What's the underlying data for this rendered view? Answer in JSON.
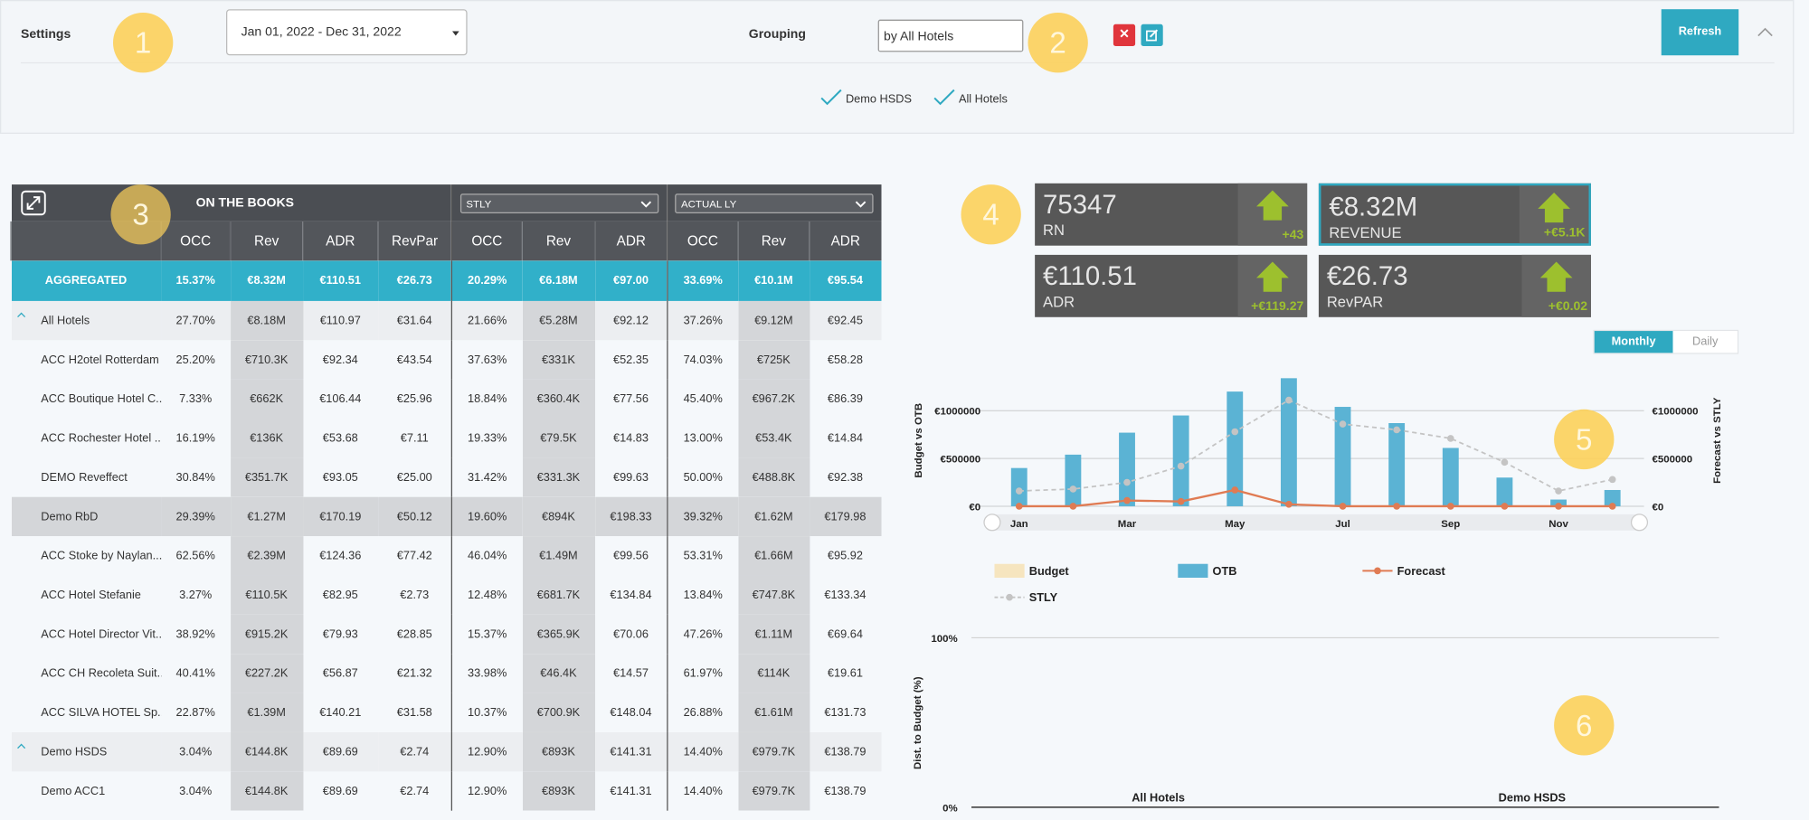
{
  "settings": {
    "title": "Settings",
    "date_range": "Jan 01, 2022 - Dec 31, 2022",
    "grouping_label": "Grouping",
    "grouping_value": "by All Hotels",
    "refresh": "Refresh",
    "selected": [
      "Demo HSDS",
      "All Hotels"
    ]
  },
  "annotations": [
    "1",
    "2",
    "3",
    "4",
    "5",
    "6"
  ],
  "table": {
    "group_headers": [
      "ON THE BOOKS",
      "STLY",
      "ACTUAL LY"
    ],
    "columns": [
      "OCC",
      "Rev",
      "ADR",
      "RevPar",
      "OCC",
      "Rev",
      "ADR",
      "OCC",
      "Rev",
      "ADR"
    ],
    "aggregate": {
      "label": "AGGREGATED",
      "cells": [
        "15.37%",
        "€8.32M",
        "€110.51",
        "€26.73",
        "20.29%",
        "€6.18M",
        "€97.00",
        "33.69%",
        "€10.1M",
        "€95.54"
      ]
    },
    "rows": [
      {
        "name": "All Hotels",
        "expanded": true,
        "cells": [
          "27.70%",
          "€8.18M",
          "€110.97",
          "€31.64",
          "21.66%",
          "€5.28M",
          "€92.12",
          "37.26%",
          "€9.12M",
          "€92.45"
        ]
      },
      {
        "name": "ACC H2otel Rotterdam",
        "cells": [
          "25.20%",
          "€710.3K",
          "€92.34",
          "€43.54",
          "37.63%",
          "€331K",
          "€52.35",
          "74.03%",
          "€725K",
          "€58.28"
        ]
      },
      {
        "name": "ACC Boutique Hotel C...",
        "cells": [
          "7.33%",
          "€662K",
          "€106.44",
          "€25.96",
          "18.84%",
          "€360.4K",
          "€77.56",
          "45.40%",
          "€967.2K",
          "€86.39"
        ]
      },
      {
        "name": "ACC Rochester Hotel ...",
        "cells": [
          "16.19%",
          "€136K",
          "€53.68",
          "€7.11",
          "19.33%",
          "€79.5K",
          "€14.83",
          "13.00%",
          "€53.4K",
          "€14.84"
        ]
      },
      {
        "name": "DEMO Reveffect",
        "cells": [
          "30.84%",
          "€351.7K",
          "€93.05",
          "€25.00",
          "31.42%",
          "€331.3K",
          "€99.63",
          "50.00%",
          "€488.8K",
          "€92.38"
        ]
      },
      {
        "name": "Demo RbD",
        "selected": true,
        "cells": [
          "29.39%",
          "€1.27M",
          "€170.19",
          "€50.12",
          "19.60%",
          "€894K",
          "€198.33",
          "39.32%",
          "€1.62M",
          "€179.98"
        ]
      },
      {
        "name": "ACC Stoke by Naylan...",
        "cells": [
          "62.56%",
          "€2.39M",
          "€124.36",
          "€77.42",
          "46.04%",
          "€1.49M",
          "€99.56",
          "53.31%",
          "€1.66M",
          "€95.92"
        ]
      },
      {
        "name": "ACC Hotel Stefanie",
        "cells": [
          "3.27%",
          "€110.5K",
          "€82.95",
          "€2.73",
          "12.48%",
          "€681.7K",
          "€134.84",
          "13.84%",
          "€747.8K",
          "€133.34"
        ]
      },
      {
        "name": "ACC Hotel Director Vit...",
        "cells": [
          "38.92%",
          "€915.2K",
          "€79.93",
          "€28.85",
          "15.37%",
          "€365.9K",
          "€70.06",
          "47.26%",
          "€1.11M",
          "€69.64"
        ]
      },
      {
        "name": "ACC CH Recoleta Suit...",
        "cells": [
          "40.41%",
          "€227.2K",
          "€56.87",
          "€21.32",
          "33.98%",
          "€46.4K",
          "€14.57",
          "61.97%",
          "€114K",
          "€19.61"
        ]
      },
      {
        "name": "ACC SILVA HOTEL Sp...",
        "cells": [
          "22.87%",
          "€1.39M",
          "€140.21",
          "€31.58",
          "10.37%",
          "€700.9K",
          "€148.04",
          "26.88%",
          "€1.61M",
          "€131.73"
        ]
      },
      {
        "name": "Demo HSDS",
        "expanded": true,
        "cells": [
          "3.04%",
          "€144.8K",
          "€89.69",
          "€2.74",
          "12.90%",
          "€893K",
          "€141.31",
          "14.40%",
          "€979.7K",
          "€138.79"
        ]
      },
      {
        "name": "Demo ACC1",
        "cells": [
          "3.04%",
          "€144.8K",
          "€89.69",
          "€2.74",
          "12.90%",
          "€893K",
          "€141.31",
          "14.40%",
          "€979.7K",
          "€138.79"
        ]
      }
    ]
  },
  "kpis": [
    {
      "value": "75347",
      "label": "RN",
      "change": "+43"
    },
    {
      "value": "€8.32M",
      "label": "REVENUE",
      "change": "+€5.1K",
      "selected": true
    },
    {
      "value": "€110.51",
      "label": "ADR",
      "change": "+€119.27"
    },
    {
      "value": "€26.73",
      "label": "RevPAR",
      "change": "+€0.02"
    }
  ],
  "view_toggle": [
    "Monthly",
    "Daily"
  ],
  "chart_data": [
    {
      "type": "combo",
      "y_label": "Budget vs OTB",
      "y2_label": "Forecast vs STLY",
      "categories": [
        "Jan",
        null,
        "Mar",
        null,
        "May",
        null,
        "Jul",
        null,
        "Sep",
        null,
        "Nov",
        null
      ],
      "ylim": [
        0,
        1400000
      ],
      "yticks": [
        {
          "value": 0,
          "label": "€0"
        },
        {
          "value": 500000,
          "label": "€500000"
        },
        {
          "value": 1000000,
          "label": "€1000000"
        }
      ],
      "y2lim": [
        0,
        1400000
      ],
      "y2ticks": [
        {
          "value": 0,
          "label": "€0"
        },
        {
          "value": 500000,
          "label": "€500000"
        },
        {
          "value": 1000000,
          "label": "€1000000"
        }
      ],
      "grid": true,
      "series": [
        {
          "name": "Budget",
          "type": "bar",
          "color": "#f6e5bf",
          "values": [
            null,
            null,
            null,
            null,
            null,
            null,
            null,
            null,
            null,
            null,
            null,
            null
          ]
        },
        {
          "name": "OTB",
          "type": "bar",
          "color": "#5bb3d4",
          "values": [
            400000,
            540000,
            770000,
            950000,
            1200000,
            1340000,
            1040000,
            870000,
            610000,
            300000,
            70000,
            170000
          ]
        },
        {
          "name": "Forecast",
          "type": "line",
          "color": "#e07b53",
          "axis": "y2",
          "values": [
            0,
            0,
            60000,
            50000,
            170000,
            20000,
            0,
            0,
            0,
            0,
            0,
            0
          ]
        },
        {
          "name": "STLY",
          "type": "line",
          "color": "#c4c4c4",
          "dashed": true,
          "axis": "y2",
          "values": [
            160000,
            180000,
            250000,
            420000,
            780000,
            1110000,
            860000,
            800000,
            710000,
            460000,
            160000,
            280000
          ]
        }
      ]
    },
    {
      "type": "bar",
      "y_label": "Dist. to Budget (%)",
      "categories": [
        "All Hotels",
        "Demo HSDS"
      ],
      "values": [
        0,
        0
      ],
      "color": "#5bb3d4",
      "ylim": [
        0,
        100
      ],
      "yticks": [
        {
          "value": 0,
          "label": "0%"
        },
        {
          "value": 100,
          "label": "100%"
        }
      ],
      "grid": true
    }
  ]
}
